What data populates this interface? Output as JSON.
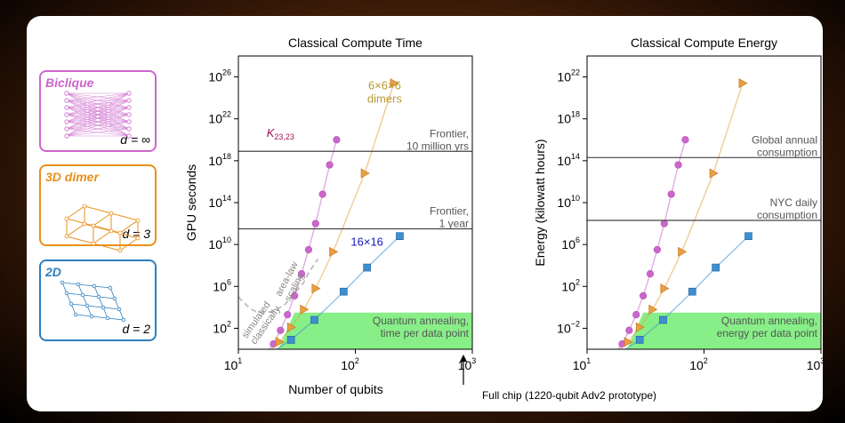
{
  "legend_boxes": [
    {
      "id": "biclique",
      "label": "Biclique",
      "d_label": "d = ∞",
      "color": "#cc66cc"
    },
    {
      "id": "dimer3d",
      "label": "3D dimer",
      "d_label": "d = 3",
      "color": "#e8901a"
    },
    {
      "id": "lattice2d",
      "label": "2D",
      "d_label": "d = 2",
      "color": "#2d7fc0"
    }
  ],
  "colors": {
    "biclique": "#cc66cc",
    "dimer": "#e8a040",
    "lattice": "#3d8fd0",
    "quantum": "#88ef88"
  },
  "bottom_note": "Full chip (1220-qubit Adv2 prototype)",
  "chart_data": [
    {
      "type": "line",
      "title": "Classical Compute Time",
      "xlabel": "Number of qubits",
      "ylabel": "GPU seconds",
      "xscale": "log",
      "yscale": "log",
      "xlim": [
        1,
        3
      ],
      "ylim": [
        0,
        28
      ],
      "x_ticks": [
        {
          "v": 1,
          "label": "10",
          "exp": "1"
        },
        {
          "v": 2,
          "label": "10",
          "exp": "2"
        },
        {
          "v": 3,
          "label": "10",
          "exp": "3"
        }
      ],
      "y_ticks": [
        {
          "v": 2,
          "label": "10",
          "exp": "2"
        },
        {
          "v": 6,
          "label": "10",
          "exp": "6"
        },
        {
          "v": 10,
          "label": "10",
          "exp": "10"
        },
        {
          "v": 14,
          "label": "10",
          "exp": "14"
        },
        {
          "v": 18,
          "label": "10",
          "exp": "18"
        },
        {
          "v": 22,
          "label": "10",
          "exp": "22"
        },
        {
          "v": 26,
          "label": "10",
          "exp": "26"
        }
      ],
      "hlines": [
        {
          "y": 18.9,
          "label_lines": [
            "Frontier,",
            "10 million yrs"
          ]
        },
        {
          "y": 11.5,
          "label_lines": [
            "Frontier,",
            "1 year"
          ]
        }
      ],
      "quantum_label_lines": [
        "Quantum annealing,",
        "time per data point"
      ],
      "quantum_band": [
        -0.6,
        3.5
      ],
      "series": [
        {
          "name": "K23,23",
          "key": "biclique",
          "marker": "circle",
          "points": [
            [
              1.2,
              -0.9
            ],
            [
              1.3,
              0.5
            ],
            [
              1.36,
              1.8
            ],
            [
              1.42,
              3.3
            ],
            [
              1.48,
              5.1
            ],
            [
              1.54,
              7.2
            ],
            [
              1.6,
              9.5
            ],
            [
              1.66,
              12
            ],
            [
              1.72,
              14.8
            ],
            [
              1.78,
              17.6
            ],
            [
              1.84,
              20
            ]
          ],
          "label": "K",
          "label_sub": "23,23",
          "label_at": [
            1.36,
            20.3
          ],
          "label_color": "#a0135a"
        },
        {
          "name": "6×6×6 dimers",
          "key": "dimer",
          "marker": "triangle",
          "points": [
            [
              1.2,
              -0.9
            ],
            [
              1.35,
              0.7
            ],
            [
              1.45,
              2.1
            ],
            [
              1.56,
              3.8
            ],
            [
              1.66,
              5.8
            ],
            [
              1.81,
              9.3
            ],
            [
              2.08,
              16.8
            ],
            [
              2.33,
              25.4
            ]
          ],
          "label_lines": [
            "6×6×6",
            "dimers"
          ],
          "label_at": [
            2.25,
            24.8
          ],
          "label_color": "#b89a30"
        },
        {
          "name": "16×16",
          "key": "lattice",
          "marker": "square",
          "points": [
            [
              1.2,
              -0.9
            ],
            [
              1.45,
              0.9
            ],
            [
              1.65,
              2.8
            ],
            [
              1.9,
              5.5
            ],
            [
              2.1,
              7.8
            ],
            [
              2.38,
              10.8
            ]
          ],
          "label": "16×16",
          "label_at": [
            2.1,
            9.9
          ],
          "label_color": "#1818b8"
        }
      ],
      "dashed_curve": [
        [
          1.0,
          5
        ],
        [
          1.05,
          4.4
        ],
        [
          1.1,
          3.9
        ],
        [
          1.15,
          3.6
        ],
        [
          1.22,
          3.5
        ],
        [
          1.3,
          3.6
        ],
        [
          1.4,
          4.3
        ],
        [
          1.5,
          5.6
        ],
        [
          1.56,
          6.4
        ],
        [
          1.6,
          7.3
        ],
        [
          1.68,
          8.6
        ]
      ],
      "dashed_label_lines": [
        "simulated",
        "classically"
      ],
      "arealaw_label_lines": [
        "area-law",
        "scaling"
      ]
    },
    {
      "type": "line",
      "title": "Classical Compute Energy",
      "xlabel": "",
      "ylabel": "Energy (kilowatt hours)",
      "xscale": "log",
      "yscale": "log",
      "xlim": [
        1,
        3
      ],
      "ylim": [
        -4,
        24
      ],
      "x_ticks": [
        {
          "v": 1,
          "label": "10",
          "exp": "1"
        },
        {
          "v": 2,
          "label": "10",
          "exp": "2"
        },
        {
          "v": 3,
          "label": "10",
          "exp": "3"
        }
      ],
      "y_ticks": [
        {
          "v": -2,
          "label": "10",
          "exp": "−2"
        },
        {
          "v": 2,
          "label": "10",
          "exp": "2"
        },
        {
          "v": 6,
          "label": "10",
          "exp": "6"
        },
        {
          "v": 10,
          "label": "10",
          "exp": "10"
        },
        {
          "v": 14,
          "label": "10",
          "exp": "14"
        },
        {
          "v": 18,
          "label": "10",
          "exp": "18"
        },
        {
          "v": 22,
          "label": "10",
          "exp": "22"
        }
      ],
      "hlines": [
        {
          "y": 14.3,
          "label_lines": [
            "Global annual",
            "consumption"
          ]
        },
        {
          "y": 8.3,
          "label_lines": [
            "NYC daily",
            "consumption"
          ]
        }
      ],
      "quantum_label_lines": [
        "Quantum annealing,",
        "energy per data point"
      ],
      "quantum_band": [
        -4.6,
        -0.5
      ],
      "series": [
        {
          "name": "biclique",
          "key": "biclique",
          "marker": "circle",
          "points": [
            [
              1.2,
              -4.9
            ],
            [
              1.3,
              -3.5
            ],
            [
              1.36,
              -2.2
            ],
            [
              1.42,
              -0.7
            ],
            [
              1.48,
              1.1
            ],
            [
              1.54,
              3.2
            ],
            [
              1.6,
              5.5
            ],
            [
              1.66,
              8
            ],
            [
              1.72,
              10.8
            ],
            [
              1.78,
              13.6
            ],
            [
              1.84,
              16
            ]
          ]
        },
        {
          "name": "dimer",
          "key": "dimer",
          "marker": "triangle",
          "points": [
            [
              1.2,
              -4.9
            ],
            [
              1.35,
              -3.3
            ],
            [
              1.45,
              -1.9
            ],
            [
              1.56,
              -0.2
            ],
            [
              1.66,
              1.8
            ],
            [
              1.81,
              5.3
            ],
            [
              2.08,
              12.8
            ],
            [
              2.33,
              21.4
            ]
          ]
        },
        {
          "name": "lattice",
          "key": "lattice",
          "marker": "square",
          "points": [
            [
              1.2,
              -4.9
            ],
            [
              1.45,
              -3.1
            ],
            [
              1.65,
              -1.2
            ],
            [
              1.9,
              1.5
            ],
            [
              2.1,
              3.8
            ],
            [
              2.38,
              6.8
            ]
          ]
        }
      ]
    }
  ]
}
